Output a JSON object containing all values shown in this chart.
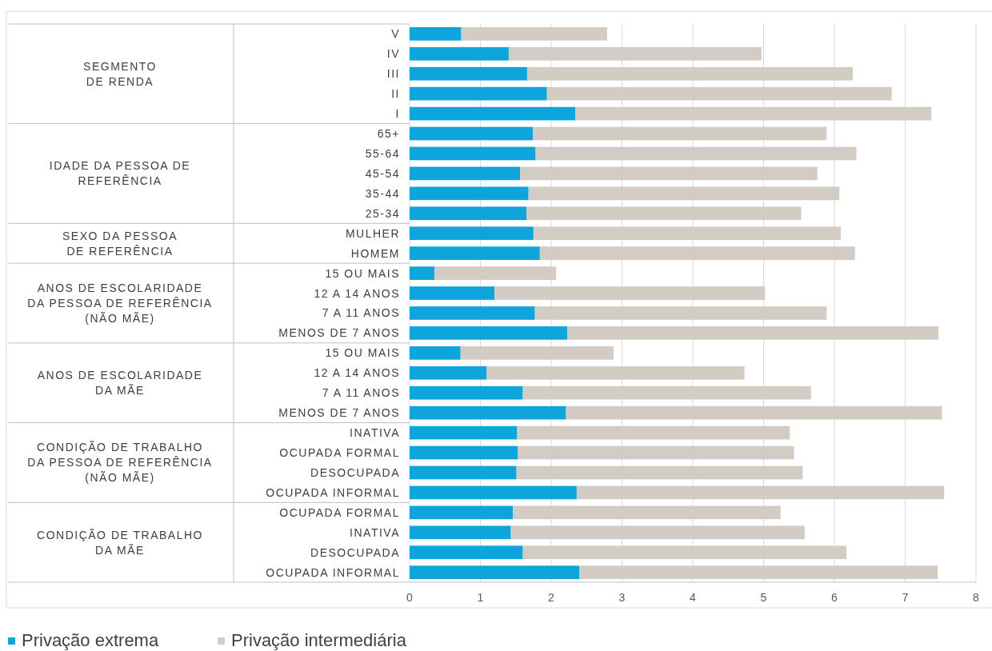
{
  "chart_data": {
    "type": "bar",
    "orientation": "horizontal",
    "stacked": true,
    "categories": [
      "V",
      "IV",
      "III",
      "II",
      "I",
      "65+",
      "55-64",
      "45-54",
      "35-44",
      "25-34",
      "MULHER",
      "HOMEM",
      "15 OU MAIS",
      "12 A 14 ANOS",
      "7 A 11 ANOS",
      "MENOS DE 7 ANOS",
      "15 OU MAIS",
      "12 A 14 ANOS",
      "7 A 11 ANOS",
      "MENOS DE 7 ANOS",
      "INATIVA",
      "OCUPADA FORMAL",
      "DESOCUPADA",
      "OCUPADA INFORMAL",
      "OCUPADA FORMAL",
      "INATIVA",
      "DESOCUPADA",
      "OCUPADA INFORMAL"
    ],
    "series": [
      {
        "name": "Privação extrema",
        "color": "#0ea5dc",
        "values": [
          0.73,
          1.4,
          1.66,
          1.94,
          2.34,
          1.74,
          1.78,
          1.56,
          1.68,
          1.65,
          1.75,
          1.84,
          0.35,
          1.2,
          1.77,
          2.23,
          0.72,
          1.09,
          1.6,
          2.21,
          1.52,
          1.53,
          1.51,
          2.36,
          1.46,
          1.43,
          1.6,
          2.4
        ]
      },
      {
        "name": "Privação intermediária",
        "color": "#d3ccc4",
        "values": [
          2.06,
          3.57,
          4.6,
          4.87,
          5.03,
          4.15,
          4.53,
          4.2,
          4.39,
          3.88,
          4.34,
          4.45,
          1.72,
          3.82,
          4.12,
          5.24,
          2.16,
          3.64,
          4.07,
          5.31,
          3.85,
          3.9,
          4.04,
          5.19,
          3.78,
          4.15,
          4.57,
          5.06
        ]
      }
    ],
    "xlim": [
      0,
      8
    ],
    "xticks": [
      0,
      1,
      2,
      3,
      4,
      5,
      6,
      7,
      8
    ],
    "grid": "x",
    "legend": "bottom left",
    "annotations": [
      "SEGMENTO\nDE RENDA",
      "IDADE DA PESSOA DE\nREFERÊNCIA",
      "SEXO DA PESSOA\nDE REFERÊNCIA",
      "ANOS DE ESCOLARIDADE\nDA PESSOA DE REFERÊNCIA\n(NÃO MÃE)",
      "ANOS DE ESCOLARIDADE\nDA MÃE",
      "CONDIÇÃO DE TRABALHO\nDA PESSOA DE REFERÊNCIA\n(NÃO MÃE)",
      "CONDIÇÃO DE TRABALHO\nDA MÃE"
    ]
  }
}
